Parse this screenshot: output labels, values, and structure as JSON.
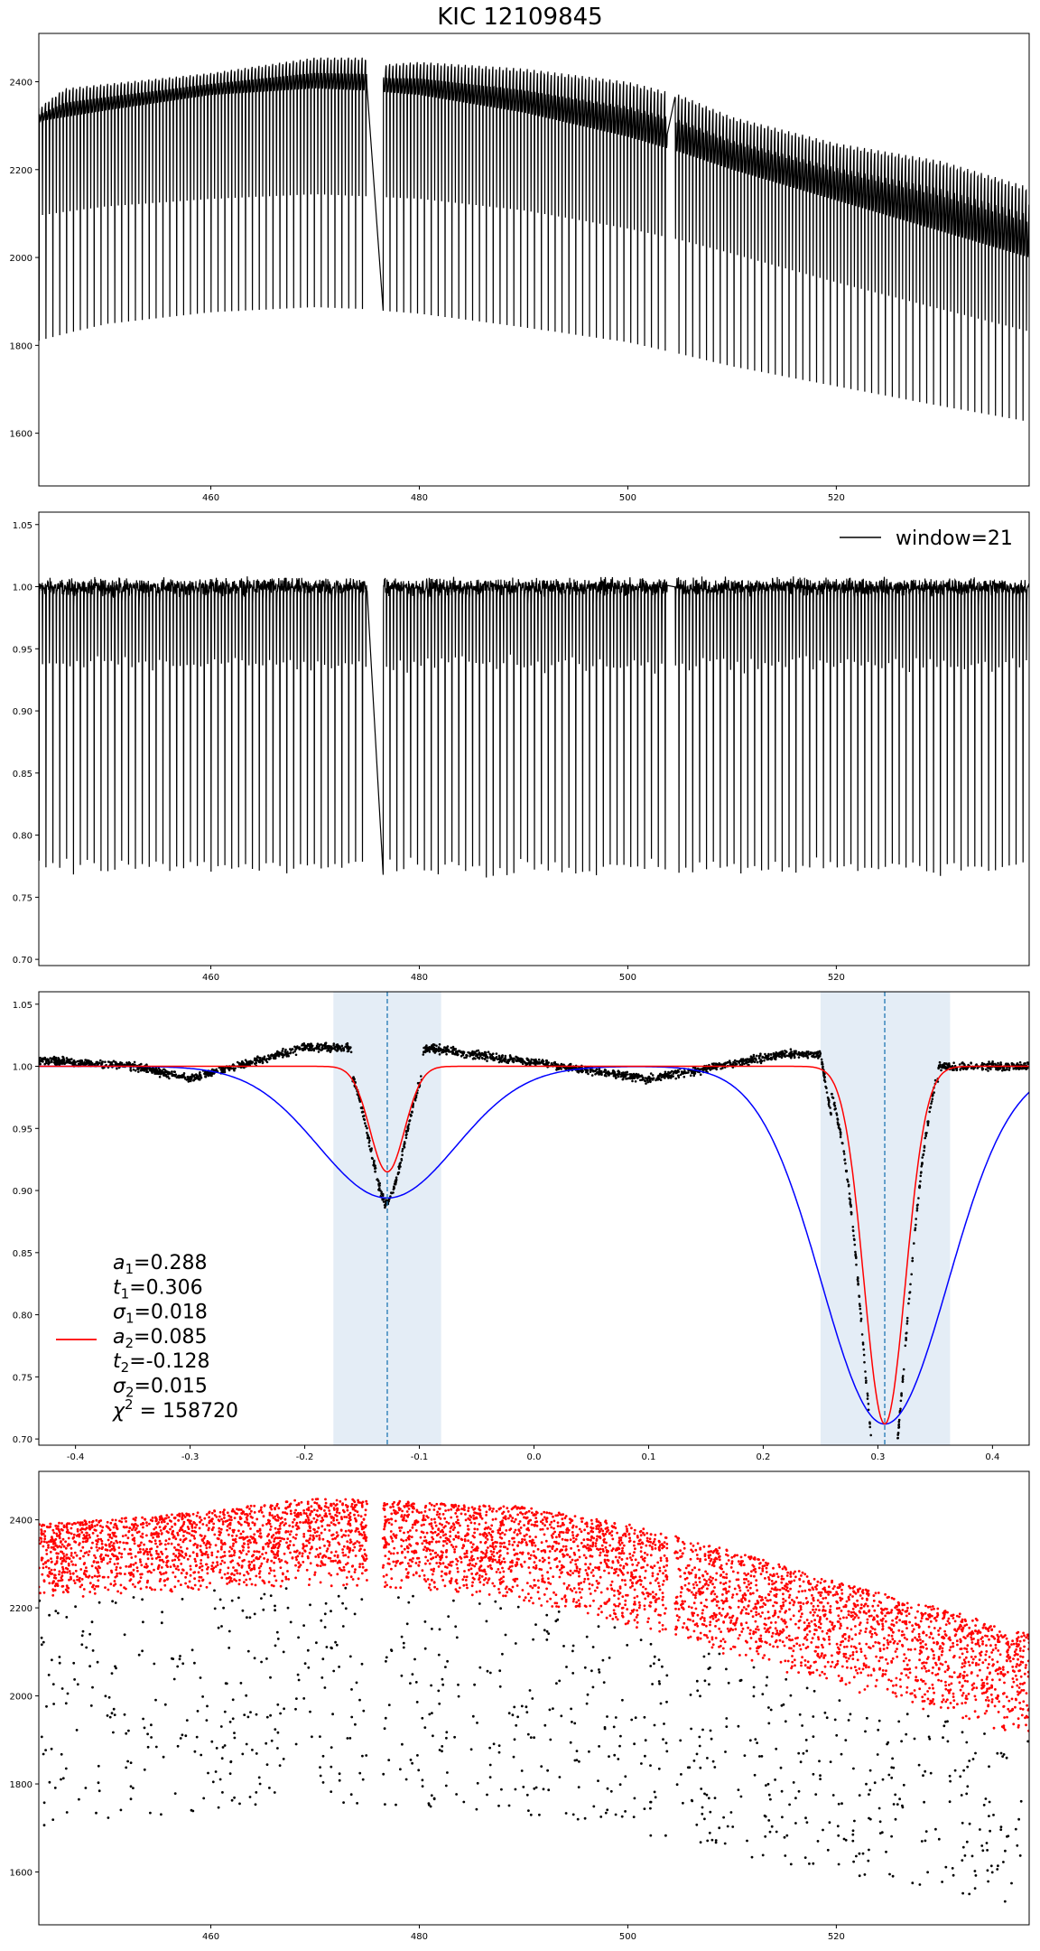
{
  "title": "KIC 12109845",
  "chart_data": [
    {
      "type": "line",
      "panel": 1,
      "series": [
        {
          "style": "line",
          "color": "#000000",
          "period_days": 0.66,
          "gap_days": [
            [
              475.0,
              476.5
            ],
            [
              503.8,
              504.5
            ]
          ],
          "baseline": [
            [
              443.5,
              2310
            ],
            [
              450,
              2335
            ],
            [
              460,
              2370
            ],
            [
              470,
              2385
            ],
            [
              475,
              2380
            ],
            [
              480,
              2370
            ],
            [
              490,
              2330
            ],
            [
              500,
              2275
            ],
            [
              505,
              2240
            ],
            [
              510,
              2200
            ],
            [
              520,
              2130
            ],
            [
              530,
              2060
            ],
            [
              538.5,
              2000
            ]
          ],
          "upper_envelope": [
            [
              443.5,
              2340
            ],
            [
              446,
              2385
            ],
            [
              450,
              2395
            ],
            [
              460,
              2420
            ],
            [
              470,
              2455
            ],
            [
              475,
              2455
            ],
            [
              477,
              2440
            ],
            [
              480,
              2445
            ],
            [
              490,
              2430
            ],
            [
              500,
              2400
            ],
            [
              505,
              2370
            ],
            [
              510,
              2320
            ],
            [
              520,
              2260
            ],
            [
              530,
              2220
            ],
            [
              538.5,
              2160
            ]
          ],
          "secondary_min": [
            [
              443.5,
              2070
            ],
            [
              450,
              2090
            ],
            [
              460,
              2105
            ],
            [
              470,
              2115
            ],
            [
              475,
              2110
            ],
            [
              480,
              2105
            ],
            [
              490,
              2080
            ],
            [
              500,
              2040
            ],
            [
              505,
              2015
            ],
            [
              510,
              1985
            ],
            [
              520,
              1920
            ],
            [
              530,
              1860
            ],
            [
              538.5,
              1810
            ]
          ],
          "primary_min": [
            [
              443.5,
              1690
            ],
            [
              450,
              1730
            ],
            [
              460,
              1755
            ],
            [
              470,
              1765
            ],
            [
              475,
              1760
            ],
            [
              480,
              1750
            ],
            [
              490,
              1720
            ],
            [
              500,
              1690
            ],
            [
              505,
              1665
            ],
            [
              510,
              1640
            ],
            [
              520,
              1600
            ],
            [
              530,
              1560
            ],
            [
              538.5,
              1530
            ]
          ]
        }
      ],
      "xlim": [
        443.5,
        538.5
      ],
      "ylim": [
        1480,
        2510
      ],
      "xticks": [
        460,
        480,
        500,
        520
      ],
      "yticks": [
        1600,
        1800,
        2000,
        2200,
        2400
      ]
    },
    {
      "type": "line",
      "panel": 2,
      "series": [
        {
          "name": "window=21",
          "style": "line",
          "color": "#000000",
          "period_days": 0.66,
          "gap_days": [
            [
              475.0,
              476.5
            ],
            [
              503.8,
              504.5
            ]
          ],
          "baseline": [
            [
              443.5,
              1.0
            ],
            [
              538.5,
              1.0
            ]
          ],
          "noise": 0.008,
          "secondary_min": [
            [
              443.5,
              0.93
            ],
            [
              538.5,
              0.93
            ]
          ],
          "primary_min": [
            [
              443.5,
              0.72
            ],
            [
              538.5,
              0.72
            ]
          ]
        }
      ],
      "legend": "top-right",
      "xlim": [
        443.5,
        538.5
      ],
      "ylim": [
        0.695,
        1.06
      ],
      "xticks": [
        460,
        480,
        500,
        520
      ],
      "yticks": [
        0.7,
        0.75,
        0.8,
        0.85,
        0.9,
        0.95,
        1.0,
        1.05
      ]
    },
    {
      "type": "scatter",
      "panel": 3,
      "series": [
        {
          "style": "points",
          "color": "#000000",
          "description_points": [
            [
              -0.43,
              1.005
            ],
            [
              -0.35,
              1.0
            ],
            [
              -0.3,
              0.99
            ],
            [
              -0.2,
              1.015
            ],
            [
              -0.16,
              1.015
            ],
            [
              -0.13,
              0.915
            ],
            [
              -0.095,
              1.015
            ],
            [
              0.0,
              1.003
            ],
            [
              0.1,
              0.99
            ],
            [
              0.22,
              1.01
            ],
            [
              0.25,
              1.01
            ],
            [
              0.306,
              0.712
            ],
            [
              0.35,
              1.0
            ],
            [
              0.43,
              1.0
            ]
          ]
        },
        {
          "style": "line",
          "color": "#ff0000",
          "a1": 0.288,
          "t1": 0.306,
          "s1": 0.018,
          "a2": 0.085,
          "t2": -0.128,
          "s2": 0.015
        },
        {
          "style": "line",
          "color": "#0000ff",
          "a1": 0.288,
          "t1": 0.306,
          "s1": 0.055,
          "a2": 0.106,
          "t2": -0.128,
          "s2": 0.06
        }
      ],
      "shaded_regions": [
        [
          -0.175,
          -0.081
        ],
        [
          0.25,
          0.363
        ]
      ],
      "vlines": [
        -0.128,
        0.306
      ],
      "annotation": [
        {
          "sym": "a",
          "sub": "1",
          "val": "=0.288"
        },
        {
          "sym": "t",
          "sub": "1",
          "val": "=0.306"
        },
        {
          "sym": "σ",
          "sub": "1",
          "val": "=0.018"
        },
        {
          "sym": "a",
          "sub": "2",
          "val": "=0.085"
        },
        {
          "sym": "t",
          "sub": "2",
          "val": "=-0.128"
        },
        {
          "sym": "σ",
          "sub": "2",
          "val": "=0.015"
        },
        {
          "sym": "χ",
          "sup": "2",
          "val": " = 158720"
        }
      ],
      "xlim": [
        -0.432,
        0.432
      ],
      "ylim": [
        0.695,
        1.06
      ],
      "xticks": [
        -0.4,
        -0.3,
        -0.2,
        -0.1,
        0.0,
        0.1,
        0.2,
        0.3,
        0.4
      ],
      "yticks": [
        0.7,
        0.75,
        0.8,
        0.85,
        0.9,
        0.95,
        1.0,
        1.05
      ]
    },
    {
      "type": "scatter",
      "panel": 4,
      "series": [
        {
          "style": "points",
          "color": "#ff0000",
          "upper_band": [
            [
              443.5,
              2390
            ],
            [
              460,
              2420
            ],
            [
              470,
              2450
            ],
            [
              475,
              2445
            ],
            [
              480,
              2440
            ],
            [
              490,
              2430
            ],
            [
              500,
              2390
            ],
            [
              510,
              2330
            ],
            [
              520,
              2260
            ],
            [
              530,
              2200
            ],
            [
              538.5,
              2140
            ]
          ],
          "lower_band": [
            [
              443.5,
              2220
            ],
            [
              460,
              2240
            ],
            [
              470,
              2250
            ],
            [
              475,
              2250
            ],
            [
              480,
              2240
            ],
            [
              490,
              2210
            ],
            [
              500,
              2160
            ],
            [
              510,
              2090
            ],
            [
              520,
              2020
            ],
            [
              530,
              1960
            ],
            [
              538.5,
              1900
            ]
          ]
        },
        {
          "style": "points",
          "color": "#000000",
          "upper_band": [
            [
              443.5,
              2220
            ],
            [
              460,
              2240
            ],
            [
              470,
              2250
            ],
            [
              480,
              2240
            ],
            [
              490,
              2210
            ],
            [
              500,
              2160
            ],
            [
              510,
              2090
            ],
            [
              520,
              2020
            ],
            [
              530,
              1960
            ],
            [
              538.5,
              1900
            ]
          ],
          "lower_band": [
            [
              443.5,
              1690
            ],
            [
              460,
              1740
            ],
            [
              470,
              1760
            ],
            [
              480,
              1750
            ],
            [
              490,
              1720
            ],
            [
              500,
              1690
            ],
            [
              510,
              1640
            ],
            [
              520,
              1600
            ],
            [
              530,
              1560
            ],
            [
              538.5,
              1520
            ]
          ]
        }
      ],
      "xlim": [
        443.5,
        538.5
      ],
      "ylim": [
        1480,
        2510
      ],
      "xticks": [
        460,
        480,
        500,
        520
      ],
      "yticks": [
        1600,
        1800,
        2000,
        2200,
        2400
      ]
    }
  ]
}
